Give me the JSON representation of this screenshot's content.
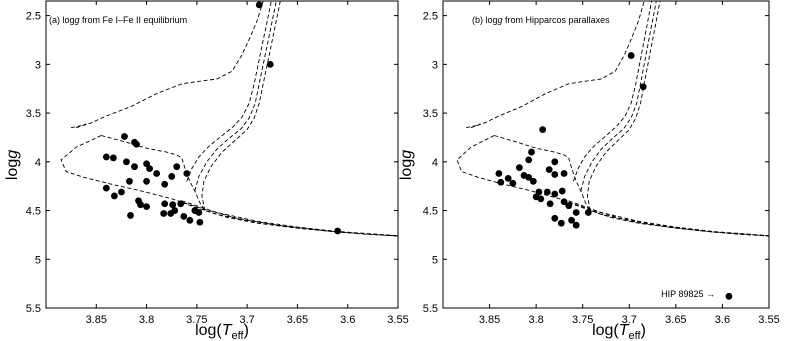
{
  "chart_data": [
    {
      "type": "scatter",
      "panel_label": "(a) log",
      "panel_label_g": "g",
      "panel_label_rest": " from Fe I–Fe II equilibrium",
      "xlabel_prefix": "log(",
      "xlabel_T": "T",
      "xlabel_sub": "eff",
      "xlabel_suffix": ")",
      "ylabel_prefix": "log",
      "ylabel_g": "g",
      "xlim": [
        3.9,
        3.55
      ],
      "ylim": [
        5.5,
        2.35
      ],
      "xticks": [
        3.85,
        3.8,
        3.75,
        3.7,
        3.65,
        3.6,
        3.55
      ],
      "xtick_labels": [
        "3.85",
        "3.8",
        "3.75",
        "3.7",
        "3.65",
        "3.6",
        "3.55"
      ],
      "yticks": [
        2.5,
        3,
        3.5,
        4,
        4.5,
        5,
        5.5
      ],
      "ytick_labels": [
        "2.5",
        "3",
        "3.5",
        "4",
        "4.5",
        "5",
        "5.5"
      ],
      "grid": false,
      "points": [
        {
          "x": 3.688,
          "y": 2.39
        },
        {
          "x": 3.677,
          "y": 3.0
        },
        {
          "x": 3.822,
          "y": 3.74
        },
        {
          "x": 3.812,
          "y": 3.8
        },
        {
          "x": 3.81,
          "y": 3.82
        },
        {
          "x": 3.84,
          "y": 3.95
        },
        {
          "x": 3.833,
          "y": 3.96
        },
        {
          "x": 3.82,
          "y": 4.0
        },
        {
          "x": 3.812,
          "y": 4.05
        },
        {
          "x": 3.8,
          "y": 4.02
        },
        {
          "x": 3.797,
          "y": 4.07
        },
        {
          "x": 3.77,
          "y": 4.05
        },
        {
          "x": 3.79,
          "y": 4.12
        },
        {
          "x": 3.775,
          "y": 4.15
        },
        {
          "x": 3.76,
          "y": 4.12
        },
        {
          "x": 3.817,
          "y": 4.2
        },
        {
          "x": 3.8,
          "y": 4.2
        },
        {
          "x": 3.782,
          "y": 4.23
        },
        {
          "x": 3.84,
          "y": 4.27
        },
        {
          "x": 3.825,
          "y": 4.31
        },
        {
          "x": 3.832,
          "y": 4.35
        },
        {
          "x": 3.808,
          "y": 4.4
        },
        {
          "x": 3.806,
          "y": 4.44
        },
        {
          "x": 3.8,
          "y": 4.46
        },
        {
          "x": 3.782,
          "y": 4.43
        },
        {
          "x": 3.774,
          "y": 4.44
        },
        {
          "x": 3.766,
          "y": 4.43
        },
        {
          "x": 3.772,
          "y": 4.5
        },
        {
          "x": 3.752,
          "y": 4.5
        },
        {
          "x": 3.748,
          "y": 4.52
        },
        {
          "x": 3.816,
          "y": 4.55
        },
        {
          "x": 3.783,
          "y": 4.53
        },
        {
          "x": 3.776,
          "y": 4.53
        },
        {
          "x": 3.763,
          "y": 4.56
        },
        {
          "x": 3.757,
          "y": 4.6
        },
        {
          "x": 3.747,
          "y": 4.62
        },
        {
          "x": 3.61,
          "y": 4.71
        }
      ]
    },
    {
      "type": "scatter",
      "panel_label": "(b) log",
      "panel_label_g": "g",
      "panel_label_rest": " from Hipparcos parallaxes",
      "xlabel_prefix": "log(",
      "xlabel_T": "T",
      "xlabel_sub": "eff",
      "xlabel_suffix": ")",
      "ylabel_prefix": "log",
      "ylabel_g": "g",
      "xlim": [
        3.9,
        3.55
      ],
      "ylim": [
        5.5,
        2.35
      ],
      "xticks": [
        3.85,
        3.8,
        3.75,
        3.7,
        3.65,
        3.6,
        3.55
      ],
      "xtick_labels": [
        "3.85",
        "3.8",
        "3.75",
        "3.7",
        "3.65",
        "3.6",
        "3.55"
      ],
      "yticks": [
        2.5,
        3,
        3.5,
        4,
        4.5,
        5,
        5.5
      ],
      "ytick_labels": [
        "2.5",
        "3",
        "3.5",
        "4",
        "4.5",
        "5",
        "5.5"
      ],
      "grid": false,
      "annotation": "HIP 89825",
      "annotation_arrow": "→",
      "points": [
        {
          "x": 3.698,
          "y": 2.91
        },
        {
          "x": 3.685,
          "y": 3.23
        },
        {
          "x": 3.793,
          "y": 3.67
        },
        {
          "x": 3.805,
          "y": 3.9
        },
        {
          "x": 3.808,
          "y": 3.98
        },
        {
          "x": 3.78,
          "y": 4.0
        },
        {
          "x": 3.818,
          "y": 4.06
        },
        {
          "x": 3.786,
          "y": 4.08
        },
        {
          "x": 3.84,
          "y": 4.12
        },
        {
          "x": 3.813,
          "y": 4.14
        },
        {
          "x": 3.78,
          "y": 4.13
        },
        {
          "x": 3.77,
          "y": 4.12
        },
        {
          "x": 3.83,
          "y": 4.17
        },
        {
          "x": 3.808,
          "y": 4.16
        },
        {
          "x": 3.838,
          "y": 4.21
        },
        {
          "x": 3.825,
          "y": 4.22
        },
        {
          "x": 3.803,
          "y": 4.2
        },
        {
          "x": 3.797,
          "y": 4.31
        },
        {
          "x": 3.788,
          "y": 4.31
        },
        {
          "x": 3.78,
          "y": 4.33
        },
        {
          "x": 3.772,
          "y": 4.3
        },
        {
          "x": 3.8,
          "y": 4.36
        },
        {
          "x": 3.795,
          "y": 4.38
        },
        {
          "x": 3.785,
          "y": 4.43
        },
        {
          "x": 3.77,
          "y": 4.41
        },
        {
          "x": 3.765,
          "y": 4.45
        },
        {
          "x": 3.757,
          "y": 4.52
        },
        {
          "x": 3.744,
          "y": 4.52
        },
        {
          "x": 3.78,
          "y": 4.58
        },
        {
          "x": 3.773,
          "y": 4.63
        },
        {
          "x": 3.762,
          "y": 4.6
        },
        {
          "x": 3.757,
          "y": 4.65
        },
        {
          "x": 3.593,
          "y": 5.38
        }
      ]
    }
  ]
}
